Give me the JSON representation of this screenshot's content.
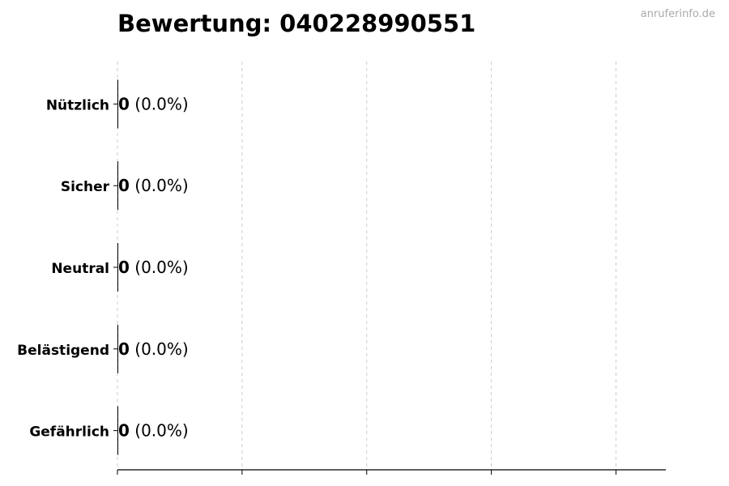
{
  "watermark": "anruferinfo.de",
  "chart_data": {
    "type": "bar",
    "orientation": "horizontal",
    "title": "Bewertung: 040228990551",
    "categories": [
      "Nützlich",
      "Sicher",
      "Neutral",
      "Belästigend",
      "Gefährlich"
    ],
    "values": [
      0,
      0,
      0,
      0,
      0
    ],
    "value_labels": [
      "0",
      "0",
      "0",
      "0",
      "0"
    ],
    "percent_labels": [
      "(0.0%)",
      "(0.0%)",
      "(0.0%)",
      "(0.0%)",
      "(0.0%)"
    ],
    "xlim": [
      0,
      4.4
    ],
    "xticks": [
      0,
      1,
      2,
      3,
      4
    ],
    "xtick_labels_shown": false,
    "grid": "x dashed",
    "bar_color": "#000000"
  }
}
